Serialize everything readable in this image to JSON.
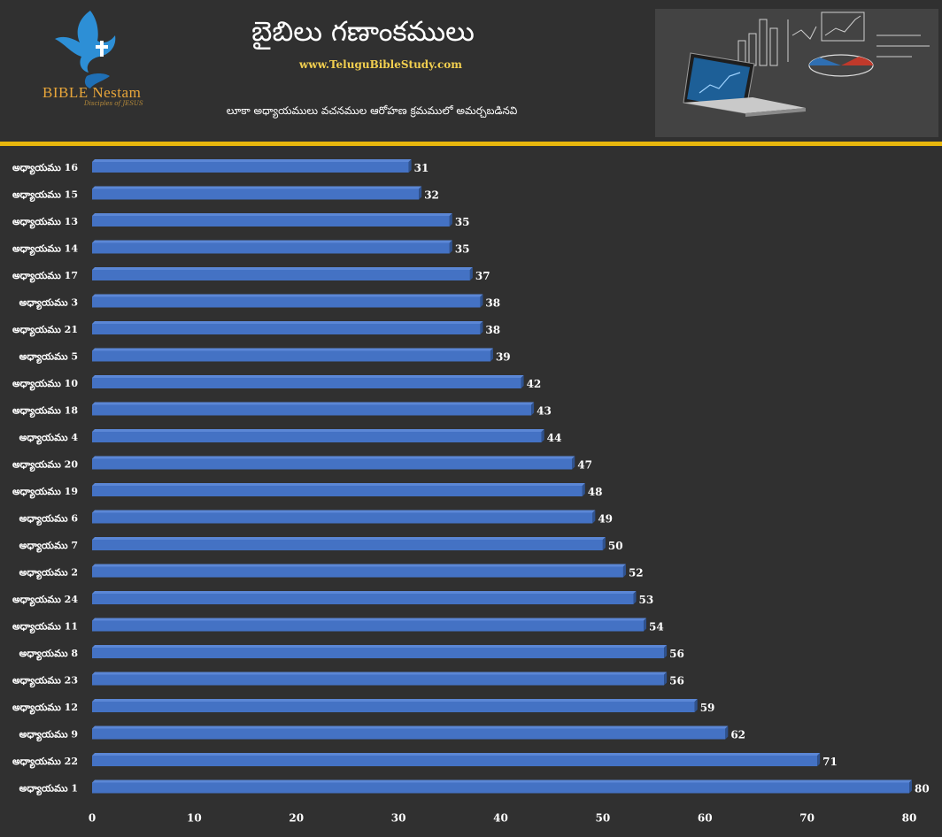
{
  "header": {
    "title": "బైబిలు గణాంకములు",
    "website": "www.TeluguBibleStudy.com",
    "subtitle": "లూకా అధ్యాయములు వచనముల ఆరోహణ క్రమములో అమర్చబడినవి",
    "brand": "BIBLE Nestam",
    "tagline": "Disciples of JESUS"
  },
  "colors": {
    "background": "#303030",
    "bar": "#4472c4",
    "divider": "#e8b70d",
    "website": "#f2cf4f",
    "brand": "#e8a63a"
  },
  "chart_data": {
    "type": "bar",
    "orientation": "horizontal",
    "categories": [
      "అధ్యాయము 16",
      "అధ్యాయము 15",
      "అధ్యాయము 13",
      "అధ్యాయము 14",
      "అధ్యాయము 17",
      "అధ్యాయము 3",
      "అధ్యాయము 21",
      "అధ్యాయము 5",
      "అధ్యాయము 10",
      "అధ్యాయము 18",
      "అధ్యాయము 4",
      "అధ్యాయము 20",
      "అధ్యాయము 19",
      "అధ్యాయము 6",
      "అధ్యాయము 7",
      "అధ్యాయము 2",
      "అధ్యాయము 24",
      "అధ్యాయము 11",
      "అధ్యాయము 8",
      "అధ్యాయము 23",
      "అధ్యాయము 12",
      "అధ్యాయము 9",
      "అధ్యాయము 22",
      "అధ్యాయము 1"
    ],
    "values": [
      31,
      32,
      35,
      35,
      37,
      38,
      38,
      39,
      42,
      43,
      44,
      47,
      48,
      49,
      50,
      52,
      53,
      54,
      56,
      56,
      59,
      62,
      71,
      80
    ],
    "xlim": [
      0,
      80
    ],
    "xticks": [
      0,
      10,
      20,
      30,
      40,
      50,
      60,
      70,
      80
    ],
    "grid": false,
    "legend": "none",
    "data_labels": true
  }
}
